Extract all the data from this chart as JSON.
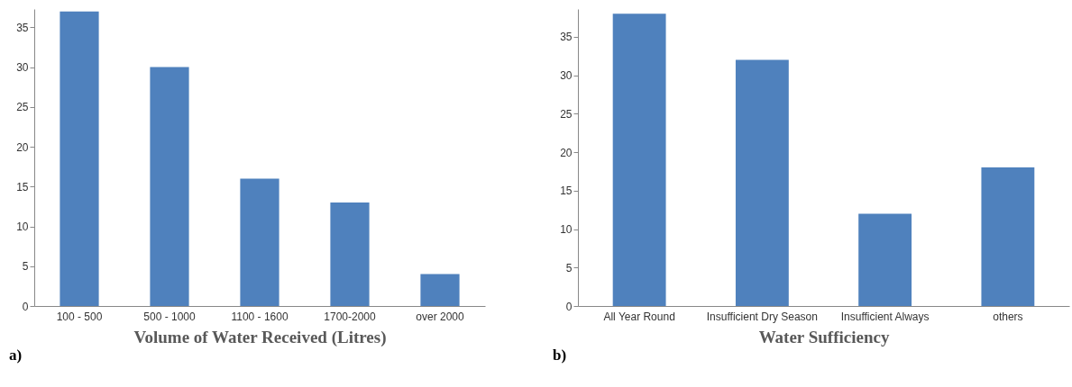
{
  "chart_data": [
    {
      "type": "bar",
      "xlabel": "Volume of Water Received (Litres)",
      "annotations": [
        "a)"
      ],
      "categories": [
        "100 - 500",
        "500 - 1000",
        "1100 - 1600",
        "1700-2000",
        "over 2000"
      ],
      "values": [
        37,
        30,
        16,
        13,
        4
      ],
      "color": "#4f81bd",
      "ylim": [
        0,
        37.3
      ],
      "yticks": [
        0,
        5,
        10,
        15,
        20,
        25,
        30,
        35
      ]
    },
    {
      "type": "bar",
      "xlabel": "Water Sufficiency",
      "annotations": [
        "b)"
      ],
      "categories": [
        "All Year Round",
        "Insufficient Dry Season",
        "Insufficient Always",
        "others"
      ],
      "values": [
        38,
        32,
        12,
        18
      ],
      "color": "#4f81bd",
      "ylim": [
        0,
        38.6
      ],
      "yticks": [
        0,
        5,
        10,
        15,
        20,
        25,
        30,
        35
      ]
    }
  ]
}
